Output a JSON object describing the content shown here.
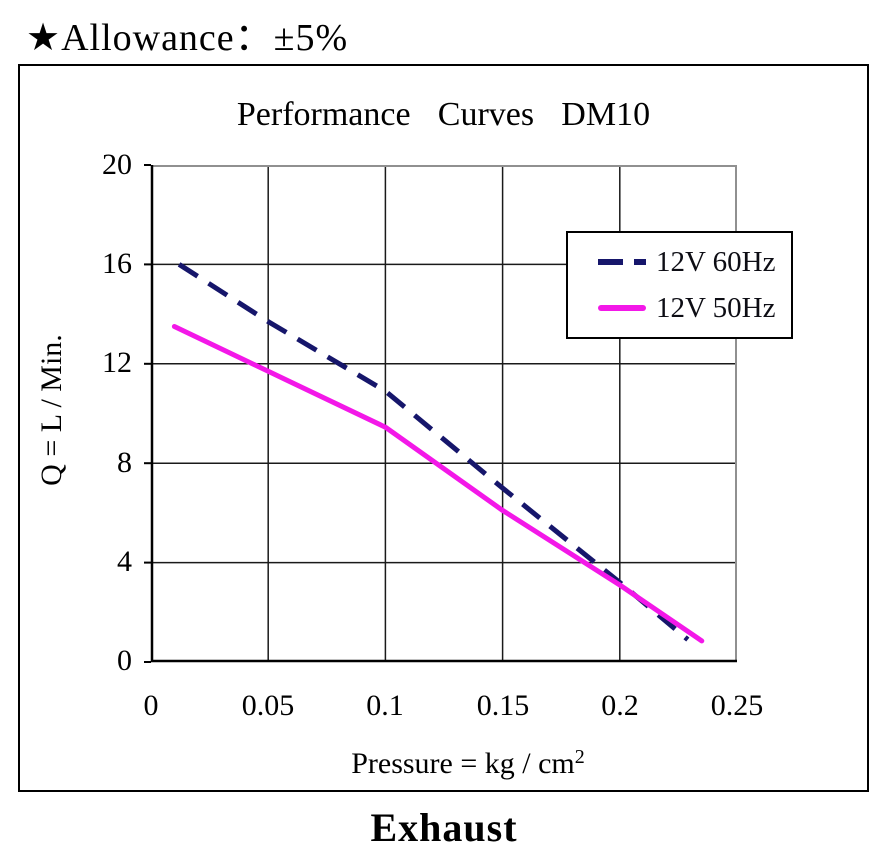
{
  "annotation": {
    "allowance": "★Allowance：±5%"
  },
  "footer": {
    "label": "Exhaust"
  },
  "colors": {
    "series_60hz": "#16166b",
    "series_50hz": "#f318e8",
    "gridline": "#1a1a1a",
    "axis_left_bottom": "#000000",
    "border_top_right": "#909090"
  },
  "chart_data": {
    "type": "line",
    "title": "Performance Curves DM10",
    "xlabel": "Pressure = kg / cm",
    "xlabel_sup": "2",
    "ylabel": "Q = L / Min.",
    "xlim": [
      0,
      0.25
    ],
    "ylim": [
      0,
      20
    ],
    "xticks": [
      0,
      0.05,
      0.1,
      0.15,
      0.2,
      0.25
    ],
    "yticks": [
      0,
      4,
      8,
      12,
      16,
      20
    ],
    "xticklabels": [
      "0",
      "0.05",
      "0.1",
      "0.15",
      "0.2",
      "0.25"
    ],
    "yticklabels_topdown": [
      "20",
      "16",
      "12",
      "8",
      "4",
      "0"
    ],
    "grid": true,
    "legend": {
      "position": "upper right",
      "entries": [
        {
          "label": "12V 60Hz",
          "style": "dashed",
          "color": "#16166b"
        },
        {
          "label": "12V 50Hz",
          "style": "solid",
          "color": "#f318e8"
        }
      ]
    },
    "series": [
      {
        "name": "12V 60Hz",
        "style": "dashed",
        "color": "#16166b",
        "points": [
          [
            0.012,
            16.0
          ],
          [
            0.05,
            13.7
          ],
          [
            0.1,
            10.9
          ],
          [
            0.15,
            7.0
          ],
          [
            0.2,
            3.2
          ],
          [
            0.229,
            0.9
          ]
        ]
      },
      {
        "name": "12V 50Hz",
        "style": "solid",
        "color": "#f318e8",
        "points": [
          [
            0.01,
            13.5
          ],
          [
            0.05,
            11.7
          ],
          [
            0.1,
            9.45
          ],
          [
            0.15,
            6.1
          ],
          [
            0.2,
            3.1
          ],
          [
            0.235,
            0.85
          ]
        ]
      }
    ]
  }
}
